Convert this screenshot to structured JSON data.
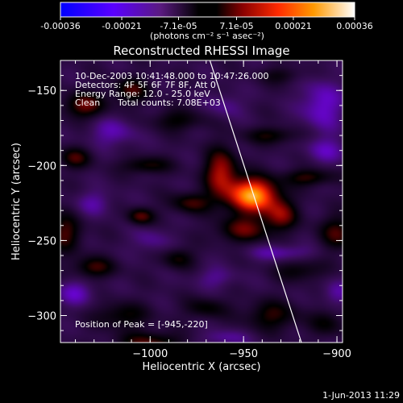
{
  "colorbar": {
    "tick_labels": [
      "-0.00036",
      "-0.00021",
      "-7.1e-05",
      "7.1e-05",
      "0.00021",
      "0.00036"
    ],
    "tick_values": [
      -0.00036,
      -0.00021,
      -7.1e-05,
      7.1e-05,
      0.00021,
      0.00036
    ],
    "range": [
      -0.00036,
      0.00036
    ],
    "units_label": "(photons cm⁻² s⁻¹ asec⁻²)"
  },
  "chart_data": {
    "type": "heatmap",
    "title": "Reconstructed RHESSI Image",
    "xlabel": "Heliocentric X (arcsec)",
    "ylabel": "Heliocentric Y (arcsec)",
    "xlim": [
      -1048,
      -897
    ],
    "ylim": [
      -318,
      -130
    ],
    "x_ticks": [
      -1000,
      -950,
      -900
    ],
    "x_tick_labels": [
      "−1000",
      "−950",
      "−900"
    ],
    "y_ticks": [
      -150,
      -200,
      -250,
      -300
    ],
    "y_tick_labels": [
      "−150",
      "−200",
      "−250",
      "−300"
    ],
    "grid": false,
    "colormap": [
      "#0000ff",
      "#7a00ff",
      "#3a0d5a",
      "#000000",
      "#8a0000",
      "#ff2a00",
      "#ff9900",
      "#ffffff"
    ],
    "peak": {
      "x": -945,
      "y": -220
    },
    "limb_line": [
      {
        "x": -968,
        "y": -130
      },
      {
        "x": -919,
        "y": -318
      }
    ],
    "sources": [
      {
        "x": -945,
        "y": -220,
        "sx": 9,
        "sy": 8,
        "v": 0.00036
      },
      {
        "x": -962,
        "y": -205,
        "sx": 6,
        "sy": 11,
        "v": 0.0002
      },
      {
        "x": -930,
        "y": -233,
        "sx": 6,
        "sy": 7,
        "v": 0.00016
      },
      {
        "x": -950,
        "y": -243,
        "sx": 10,
        "sy": 6,
        "v": 0.00014
      },
      {
        "x": -978,
        "y": -225,
        "sx": 8,
        "sy": 5,
        "v": 0.00012
      },
      {
        "x": -1035,
        "y": -160,
        "sx": 8,
        "sy": 6,
        "v": 0.00015
      },
      {
        "x": -1010,
        "y": -150,
        "sx": 7,
        "sy": 6,
        "v": 0.00012
      },
      {
        "x": -1040,
        "y": -195,
        "sx": 6,
        "sy": 5,
        "v": 0.00012
      },
      {
        "x": -1002,
        "y": -200,
        "sx": 9,
        "sy": 4,
        "v": 0.00011
      },
      {
        "x": -985,
        "y": -170,
        "sx": 10,
        "sy": 5,
        "v": 9e-05
      },
      {
        "x": -1005,
        "y": -234,
        "sx": 5,
        "sy": 4,
        "v": 0.00014
      },
      {
        "x": -1045,
        "y": -245,
        "sx": 6,
        "sy": 9,
        "v": 0.00013
      },
      {
        "x": -1030,
        "y": -268,
        "sx": 8,
        "sy": 5,
        "v": 0.00012
      },
      {
        "x": -985,
        "y": -262,
        "sx": 6,
        "sy": 5,
        "v": 0.0001
      },
      {
        "x": -1015,
        "y": -300,
        "sx": 10,
        "sy": 6,
        "v": 0.0001
      },
      {
        "x": -970,
        "y": -295,
        "sx": 8,
        "sy": 5,
        "v": 9e-05
      },
      {
        "x": -1000,
        "y": -318,
        "sx": 12,
        "sy": 5,
        "v": 0.00013
      },
      {
        "x": -935,
        "y": -180,
        "sx": 10,
        "sy": 4,
        "v": 0.0001
      },
      {
        "x": -915,
        "y": -208,
        "sx": 9,
        "sy": 4,
        "v": 0.00012
      },
      {
        "x": -900,
        "y": -245,
        "sx": 7,
        "sy": 8,
        "v": 0.00012
      },
      {
        "x": -920,
        "y": -270,
        "sx": 9,
        "sy": 5,
        "v": 9e-05
      },
      {
        "x": -935,
        "y": -300,
        "sx": 10,
        "sy": 7,
        "v": 0.00011
      },
      {
        "x": -905,
        "y": -305,
        "sx": 7,
        "sy": 6,
        "v": 8e-05
      },
      {
        "x": -930,
        "y": -140,
        "sx": 8,
        "sy": 4,
        "v": 7e-05
      },
      {
        "x": -1020,
        "y": -178,
        "sx": 9,
        "sy": 7,
        "v": -8e-05
      },
      {
        "x": -960,
        "y": -160,
        "sx": 7,
        "sy": 6,
        "v": -6e-05
      },
      {
        "x": -908,
        "y": -160,
        "sx": 8,
        "sy": 12,
        "v": -0.00011
      },
      {
        "x": -905,
        "y": -190,
        "sx": 8,
        "sy": 6,
        "v": -8e-05
      },
      {
        "x": -1030,
        "y": -225,
        "sx": 7,
        "sy": 6,
        "v": -7e-05
      },
      {
        "x": -930,
        "y": -258,
        "sx": 12,
        "sy": 4,
        "v": -8e-05
      },
      {
        "x": -1000,
        "y": -250,
        "sx": 7,
        "sy": 6,
        "v": -6e-05
      },
      {
        "x": -965,
        "y": -275,
        "sx": 8,
        "sy": 5,
        "v": -6e-05
      },
      {
        "x": -1040,
        "y": -285,
        "sx": 7,
        "sy": 6,
        "v": -9e-05
      },
      {
        "x": -960,
        "y": -315,
        "sx": 9,
        "sy": 4,
        "v": -7e-05
      },
      {
        "x": -900,
        "y": -285,
        "sx": 6,
        "sy": 6,
        "v": -7e-05
      }
    ]
  },
  "annotations": {
    "time_range": "10-Dec-2003 10:41:48.000 to 10:47:26.000",
    "detectors": "Detectors: 4F 5F 6F 7F 8F, Att 0",
    "energy_range": "Energy Range: 12.0 - 25.0 keV",
    "algorithm": "Clean",
    "total_counts": "Total counts: 7.08E+03",
    "peak_label": "Position of Peak = [-945,-220]"
  },
  "footer": {
    "date": "1-Jun-2013 11:29"
  }
}
